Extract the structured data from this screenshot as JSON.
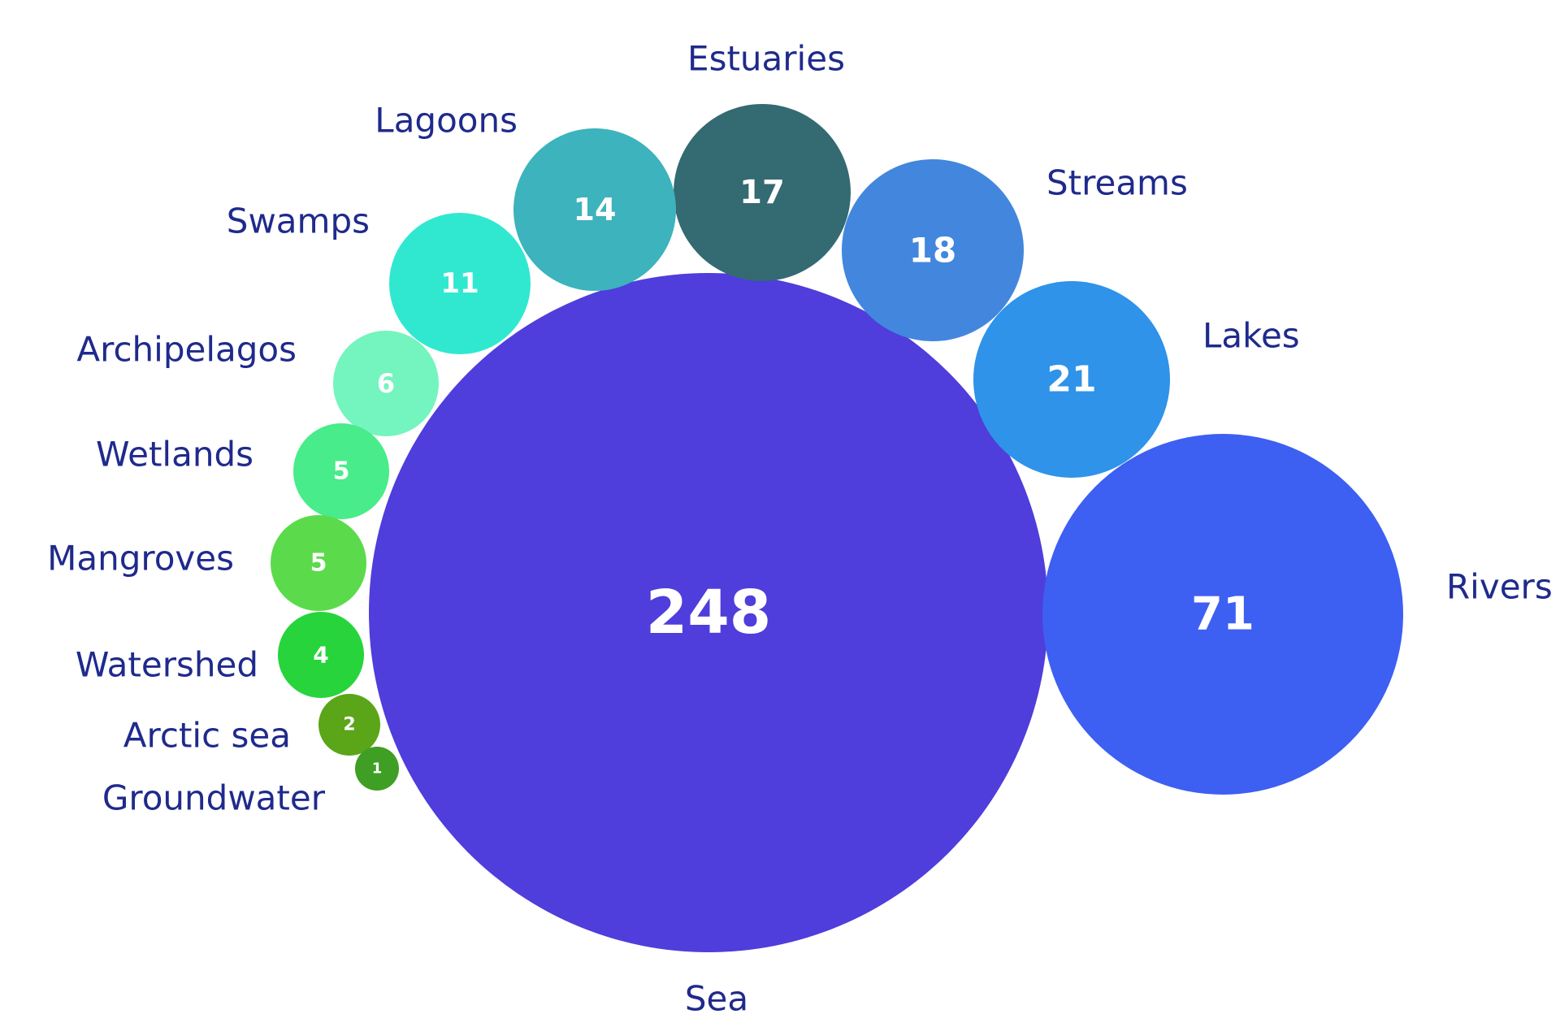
{
  "chart_data": {
    "type": "bubble",
    "title": "",
    "series": [
      {
        "name": "Sea",
        "value": 248,
        "color": "#4f3ddc"
      },
      {
        "name": "Rivers",
        "value": 71,
        "color": "#3d5ff2"
      },
      {
        "name": "Lakes",
        "value": 21,
        "color": "#2e93e9"
      },
      {
        "name": "Streams",
        "value": 18,
        "color": "#4287dd"
      },
      {
        "name": "Estuaries",
        "value": 17,
        "color": "#346a72"
      },
      {
        "name": "Lagoons",
        "value": 14,
        "color": "#3cb3bd"
      },
      {
        "name": "Swamps",
        "value": 11,
        "color": "#30e8cf"
      },
      {
        "name": "Archipelagos",
        "value": 6,
        "color": "#74f4be"
      },
      {
        "name": "Wetlands",
        "value": 5,
        "color": "#48ec8a"
      },
      {
        "name": "Mangroves",
        "value": 5,
        "color": "#5bdb4b"
      },
      {
        "name": "Watershed",
        "value": 4,
        "color": "#27d43b"
      },
      {
        "name": "Arctic sea",
        "value": 2,
        "color": "#5aa518"
      },
      {
        "name": "Groundwater",
        "value": 1,
        "color": "#3f9f24"
      }
    ]
  }
}
